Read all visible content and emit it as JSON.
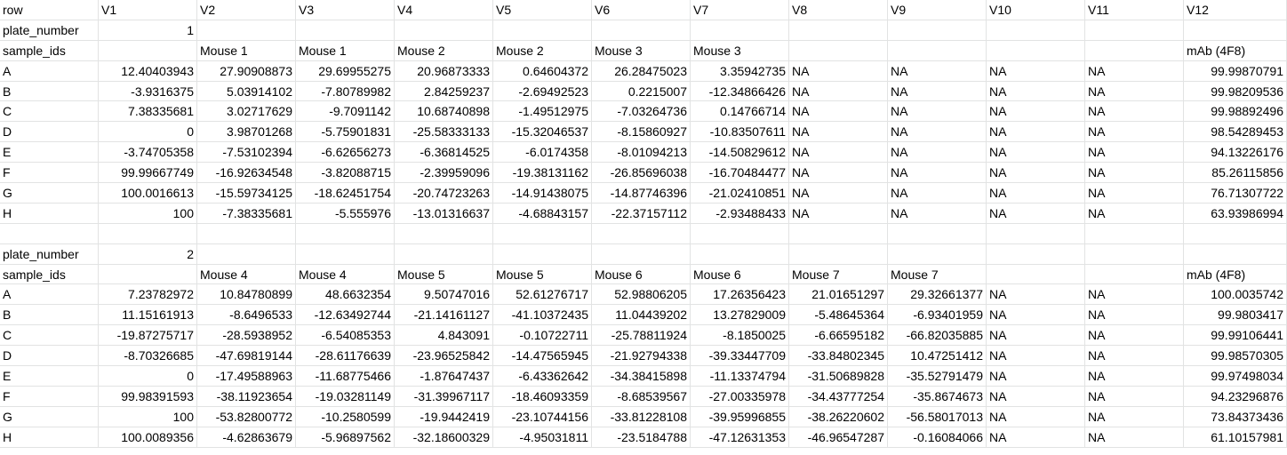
{
  "header": [
    "row",
    "V1",
    "V2",
    "V3",
    "V4",
    "V5",
    "V6",
    "V7",
    "V8",
    "V9",
    "V10",
    "V11",
    "V12"
  ],
  "rows": [
    [
      "plate_number",
      "1",
      "",
      "",
      "",
      "",
      "",
      "",
      "",
      "",
      "",
      "",
      ""
    ],
    [
      "sample_ids",
      "",
      "Mouse 1",
      "Mouse 1",
      "Mouse 2",
      "Mouse 2",
      "Mouse 3",
      "Mouse 3",
      "",
      "",
      "",
      "",
      "mAb (4F8)"
    ],
    [
      "A",
      "12.40403943",
      "27.90908873",
      "29.69955275",
      "20.96873333",
      "0.64604372",
      "26.28475023",
      "3.35942735",
      "NA",
      "NA",
      "NA",
      "NA",
      "99.99870791"
    ],
    [
      "B",
      "-3.9316375",
      "5.03914102",
      "-7.80789982",
      "2.84259237",
      "-2.69492523",
      "0.2215007",
      "-12.34866426",
      "NA",
      "NA",
      "NA",
      "NA",
      "99.98209536"
    ],
    [
      "C",
      "7.38335681",
      "3.02717629",
      "-9.7091142",
      "10.68740898",
      "-1.49512975",
      "-7.03264736",
      "0.14766714",
      "NA",
      "NA",
      "NA",
      "NA",
      "99.98892496"
    ],
    [
      "D",
      "0",
      "3.98701268",
      "-5.75901831",
      "-25.58333133",
      "-15.32046537",
      "-8.15860927",
      "-10.83507611",
      "NA",
      "NA",
      "NA",
      "NA",
      "98.54289453"
    ],
    [
      "E",
      "-3.74705358",
      "-7.53102394",
      "-6.62656273",
      "-6.36814525",
      "-6.0174358",
      "-8.01094213",
      "-14.50829612",
      "NA",
      "NA",
      "NA",
      "NA",
      "94.13226176"
    ],
    [
      "F",
      "99.99667749",
      "-16.92634548",
      "-3.82088715",
      "-2.39959096",
      "-19.38131162",
      "-26.85696038",
      "-16.70484477",
      "NA",
      "NA",
      "NA",
      "NA",
      "85.26115856"
    ],
    [
      "G",
      "100.0016613",
      "-15.59734125",
      "-18.62451754",
      "-20.74723263",
      "-14.91438075",
      "-14.87746396",
      "-21.02410851",
      "NA",
      "NA",
      "NA",
      "NA",
      "76.71307722"
    ],
    [
      "H",
      "100",
      "-7.38335681",
      "-5.555976",
      "-13.01316637",
      "-4.68843157",
      "-22.37157112",
      "-2.93488433",
      "NA",
      "NA",
      "NA",
      "NA",
      "63.93986994"
    ],
    [
      "",
      "",
      "",
      "",
      "",
      "",
      "",
      "",
      "",
      "",
      "",
      "",
      ""
    ],
    [
      "plate_number",
      "2",
      "",
      "",
      "",
      "",
      "",
      "",
      "",
      "",
      "",
      "",
      ""
    ],
    [
      "sample_ids",
      "",
      "Mouse 4",
      "Mouse 4",
      "Mouse 5",
      "Mouse 5",
      "Mouse 6",
      "Mouse 6",
      "Mouse 7",
      "Mouse 7",
      "",
      "",
      "mAb (4F8)"
    ],
    [
      "A",
      "7.23782972",
      "10.84780899",
      "48.6632354",
      "9.50747016",
      "52.61276717",
      "52.98806205",
      "17.26356423",
      "21.01651297",
      "29.32661377",
      "NA",
      "NA",
      "100.0035742"
    ],
    [
      "B",
      "11.15161913",
      "-8.6496533",
      "-12.63492744",
      "-21.14161127",
      "-41.10372435",
      "11.04439202",
      "13.27829009",
      "-5.48645364",
      "-6.93401959",
      "NA",
      "NA",
      "99.9803417"
    ],
    [
      "C",
      "-19.87275717",
      "-28.5938952",
      "-6.54085353",
      "4.843091",
      "-0.10722711",
      "-25.78811924",
      "-8.1850025",
      "-6.66595182",
      "-66.82035885",
      "NA",
      "NA",
      "99.99106441"
    ],
    [
      "D",
      "-8.70326685",
      "-47.69819144",
      "-28.61176639",
      "-23.96525842",
      "-14.47565945",
      "-21.92794338",
      "-39.33447709",
      "-33.84802345",
      "10.47251412",
      "NA",
      "NA",
      "99.98570305"
    ],
    [
      "E",
      "0",
      "-17.49588963",
      "-11.68775466",
      "-1.87647437",
      "-6.43362642",
      "-34.38415898",
      "-11.13374794",
      "-31.50689828",
      "-35.52791479",
      "NA",
      "NA",
      "99.97498034"
    ],
    [
      "F",
      "99.98391593",
      "-38.11923654",
      "-19.03281149",
      "-31.39967117",
      "-18.46093359",
      "-8.68539567",
      "-27.00335978",
      "-34.43777254",
      "-35.8674673",
      "NA",
      "NA",
      "94.23296876"
    ],
    [
      "G",
      "100",
      "-53.82800772",
      "-10.2580599",
      "-19.9442419",
      "-23.10744156",
      "-33.81228108",
      "-39.95996855",
      "-38.26220602",
      "-56.58017013",
      "NA",
      "NA",
      "73.84373436"
    ],
    [
      "H",
      "100.0089356",
      "-4.62863679",
      "-5.96897562",
      "-32.18600329",
      "-4.95031811",
      "-23.5184788",
      "-47.12631353",
      "-46.96547287",
      "-0.16084066",
      "NA",
      "NA",
      "61.10157981"
    ]
  ]
}
